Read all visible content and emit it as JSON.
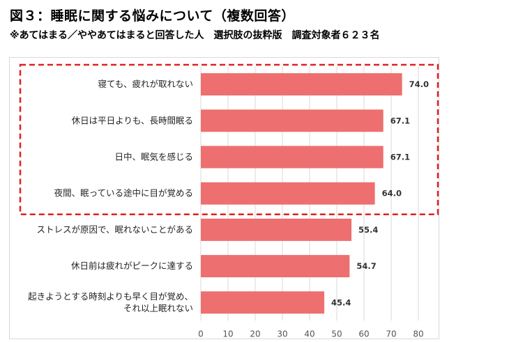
{
  "title": "図３：睡眠に関する悩みについて（複数回答）",
  "subtitle": "※あてはまる／ややあてはまると回答した人　選択肢の抜粋版　調査対象者６２３名",
  "chart_data": {
    "type": "bar",
    "orientation": "horizontal",
    "categories": [
      [
        "寝ても、疲れが取れない"
      ],
      [
        "休日は平日よりも、長時間眠る"
      ],
      [
        "日中、眠気を感じる"
      ],
      [
        "夜間、眠っている途中に目が覚める"
      ],
      [
        "ストレスが原因で、眠れないことがある"
      ],
      [
        "休日前は疲れがピークに達する"
      ],
      [
        "起きようとする時刻よりも早く目が覚め、",
        "それ以上眠れない"
      ]
    ],
    "values": [
      74.0,
      67.1,
      67.1,
      64.0,
      55.4,
      54.7,
      45.4
    ],
    "value_labels": [
      "74.0",
      "67.1",
      "67.1",
      "64.0",
      "55.4",
      "54.7",
      "45.4"
    ],
    "xlim": [
      0,
      80
    ],
    "xticks": [
      0,
      10,
      20,
      30,
      40,
      50,
      60,
      70,
      80
    ],
    "grid": true,
    "bar_color": "#ee6f6f",
    "highlight": {
      "first_index": 0,
      "last_index": 3,
      "color": "#e02020",
      "style": "dashed"
    }
  }
}
